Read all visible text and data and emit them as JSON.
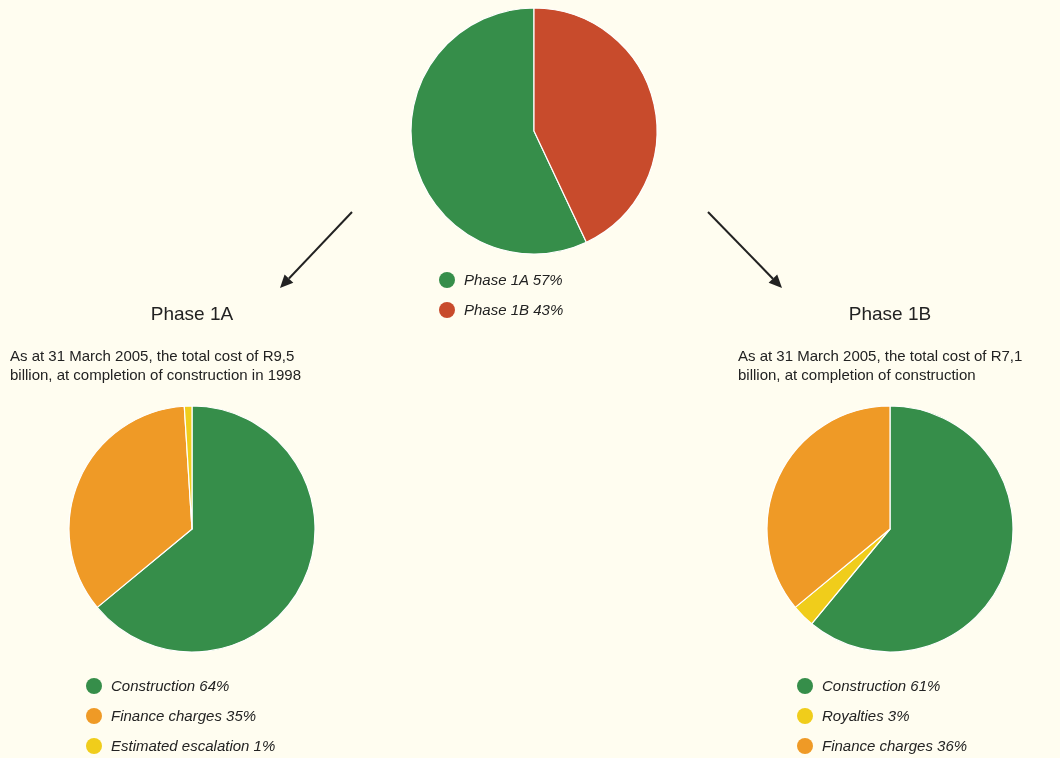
{
  "chart_data": [
    {
      "type": "pie",
      "categories": [
        "Phase 1A",
        "Phase 1B"
      ],
      "values": [
        57,
        43
      ],
      "colors": [
        "#368e4a",
        "#c84b2c"
      ],
      "value_labels": [
        "57%",
        "43%"
      ],
      "legend": "bottom"
    },
    {
      "type": "pie",
      "title": "Phase 1A",
      "subtitle": "As at 31 March 2005, the total cost of R9,5 billion, at completion of construction in 1998",
      "categories": [
        "Construction",
        "Finance charges",
        "Estimated escalation"
      ],
      "values": [
        64,
        35,
        1
      ],
      "colors": [
        "#368e4a",
        "#ef9a26",
        "#f0cd1b"
      ],
      "value_labels": [
        "64%",
        "35%",
        "1%"
      ],
      "legend": "bottom"
    },
    {
      "type": "pie",
      "title": "Phase 1B",
      "subtitle": "As at 31 March 2005, the total cost of R7,1 billion, at completion of construction",
      "categories": [
        "Construction",
        "Royalties",
        "Finance charges"
      ],
      "values": [
        61,
        3,
        36
      ],
      "colors": [
        "#368e4a",
        "#f0cd1b",
        "#ef9a26"
      ],
      "value_labels": [
        "61%",
        "3%",
        "36%"
      ],
      "legend": "bottom"
    }
  ]
}
